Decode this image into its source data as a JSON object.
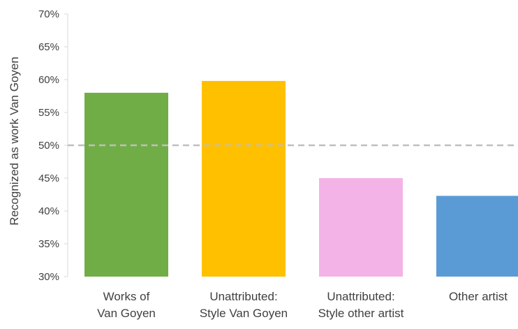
{
  "chart_data": {
    "type": "bar",
    "categories": [
      [
        "Works of",
        "Van Goyen"
      ],
      [
        "Unattributed:",
        "Style Van Goyen"
      ],
      [
        "Unattributed:",
        "Style other artist"
      ],
      [
        "Other artist"
      ]
    ],
    "values": [
      0.58,
      0.598,
      0.45,
      0.423
    ],
    "colors": [
      "#70AD47",
      "#FFC000",
      "#F4B3E6",
      "#5B9BD5"
    ],
    "ylabel": "Recognized as work Van Goyen",
    "ylim": [
      0.3,
      0.7
    ],
    "yticks": [
      0.3,
      0.35,
      0.4,
      0.45,
      0.5,
      0.55,
      0.6,
      0.65,
      0.7
    ],
    "ytick_labels": [
      "30%",
      "35%",
      "40%",
      "45%",
      "50%",
      "55%",
      "60%",
      "65%",
      "70%"
    ],
    "reference_line": {
      "value": 0.5,
      "style": "dashed",
      "color": "#BFBFBF"
    },
    "grid": false,
    "legend": "none"
  }
}
